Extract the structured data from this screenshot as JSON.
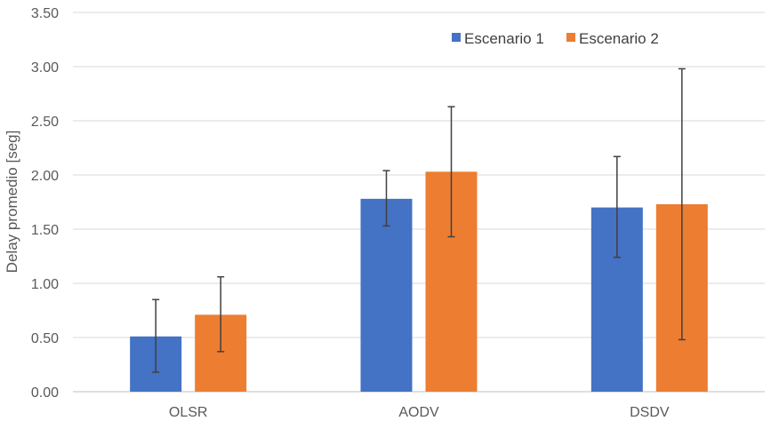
{
  "chart_data": {
    "type": "bar",
    "title": "",
    "xlabel": "",
    "ylabel": "Delay promedio [seg]",
    "ylim": [
      0,
      3.5
    ],
    "yticks": [
      "0.00",
      "0.50",
      "1.00",
      "1.50",
      "2.00",
      "2.50",
      "3.00",
      "3.50"
    ],
    "categories": [
      "OLSR",
      "AODV",
      "DSDV"
    ],
    "grid": true,
    "legend_position": "top-right",
    "series": [
      {
        "name": "Escenario 1",
        "color": "#4472C4",
        "values": [
          0.51,
          1.78,
          1.7
        ],
        "error_low": [
          0.18,
          1.53,
          1.24
        ],
        "error_high": [
          0.85,
          2.04,
          2.17
        ]
      },
      {
        "name": "Escenario 2",
        "color": "#ED7D31",
        "values": [
          0.71,
          2.03,
          1.73
        ],
        "error_low": [
          0.37,
          1.43,
          0.48
        ],
        "error_high": [
          1.06,
          2.63,
          2.98
        ]
      }
    ]
  }
}
